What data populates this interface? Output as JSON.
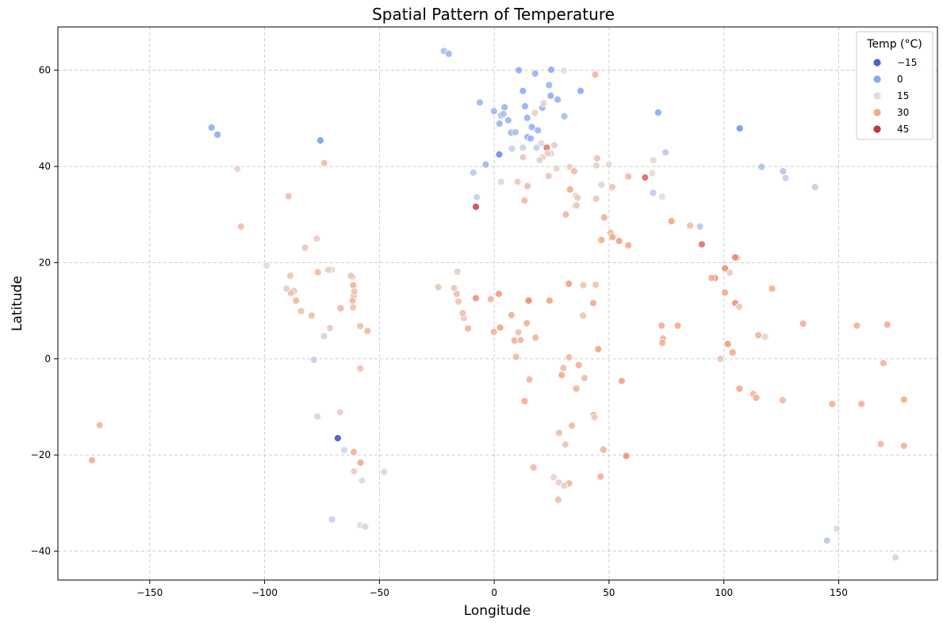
{
  "chart_data": {
    "type": "scatter",
    "title": "Spatial Pattern of Temperature",
    "xlabel": "Longitude",
    "ylabel": "Latitude",
    "xlim": [
      -190,
      193
    ],
    "ylim": [
      -46,
      69
    ],
    "xticks": [
      -150,
      -100,
      -50,
      0,
      50,
      100,
      150
    ],
    "yticks": [
      -40,
      -20,
      0,
      20,
      40,
      60
    ],
    "grid": true,
    "grid_style": "dashed",
    "legend": {
      "title": "Temp (°C)",
      "placement": "top-right",
      "entries": [
        {
          "label": "−15",
          "value": -15
        },
        {
          "label": "0",
          "value": 0
        },
        {
          "label": "15",
          "value": 15
        },
        {
          "label": "30",
          "value": 30
        },
        {
          "label": "45",
          "value": 45
        }
      ]
    },
    "colormap": "coolwarm",
    "color_range": [
      -20,
      50
    ],
    "points": [
      {
        "x": 10.7,
        "y": 60,
        "t": -1
      },
      {
        "x": 24.8,
        "y": 60.1,
        "t": -1
      },
      {
        "x": 17.8,
        "y": 59.3,
        "t": 1
      },
      {
        "x": -21.9,
        "y": 64,
        "t": 5
      },
      {
        "x": -19.8,
        "y": 63.4,
        "t": 3
      },
      {
        "x": 30.3,
        "y": 59.9,
        "t": 16
      },
      {
        "x": 44,
        "y": 59.1,
        "t": 28
      },
      {
        "x": 37.6,
        "y": 55.7,
        "t": -1
      },
      {
        "x": 12.5,
        "y": 55.7,
        "t": 0
      },
      {
        "x": -6.3,
        "y": 53.3,
        "t": 3
      },
      {
        "x": 23.9,
        "y": 56.9,
        "t": 2
      },
      {
        "x": 24.6,
        "y": 54.7,
        "t": 0
      },
      {
        "x": 27.6,
        "y": 53.9,
        "t": 1
      },
      {
        "x": 13.4,
        "y": 52.5,
        "t": 0
      },
      {
        "x": 21,
        "y": 52.2,
        "t": 2
      },
      {
        "x": 4.5,
        "y": 52.3,
        "t": 2
      },
      {
        "x": -0.1,
        "y": 51.5,
        "t": 3
      },
      {
        "x": 17.7,
        "y": 51.1,
        "t": 20
      },
      {
        "x": 2.3,
        "y": 48.9,
        "t": 2
      },
      {
        "x": 14.4,
        "y": 50.1,
        "t": 1
      },
      {
        "x": 3,
        "y": 50.6,
        "t": 3
      },
      {
        "x": 4,
        "y": 50.9,
        "t": 6
      },
      {
        "x": 30.5,
        "y": 50.4,
        "t": 5
      },
      {
        "x": 21.5,
        "y": 53.1,
        "t": 19
      },
      {
        "x": 6.1,
        "y": 49.6,
        "t": 2
      },
      {
        "x": 16.4,
        "y": 48.2,
        "t": 1
      },
      {
        "x": 19,
        "y": 47.5,
        "t": 2
      },
      {
        "x": 7.4,
        "y": 47,
        "t": 2
      },
      {
        "x": 9.2,
        "y": 47.1,
        "t": 5
      },
      {
        "x": 14.5,
        "y": 46.1,
        "t": 0
      },
      {
        "x": 15.9,
        "y": 45.8,
        "t": 2
      },
      {
        "x": -3.7,
        "y": 40.4,
        "t": 3
      },
      {
        "x": 2.2,
        "y": 42.5,
        "t": -8
      },
      {
        "x": 7.7,
        "y": 43.7,
        "t": 10
      },
      {
        "x": 12.5,
        "y": 43.9,
        "t": 11
      },
      {
        "x": 18.4,
        "y": 43.9,
        "t": 10
      },
      {
        "x": 20.5,
        "y": 44.8,
        "t": 14
      },
      {
        "x": 21.1,
        "y": 41.9,
        "t": 20
      },
      {
        "x": 22.9,
        "y": 43.9,
        "t": 38
      },
      {
        "x": 24.7,
        "y": 42.7,
        "t": 18
      },
      {
        "x": 26.1,
        "y": 44.4,
        "t": 21
      },
      {
        "x": 23.3,
        "y": 42.7,
        "t": 20
      },
      {
        "x": 19.8,
        "y": 41.3,
        "t": 20
      },
      {
        "x": 12.5,
        "y": 41.9,
        "t": 22
      },
      {
        "x": 27.1,
        "y": 39.6,
        "t": 19
      },
      {
        "x": 23.7,
        "y": 38,
        "t": 23
      },
      {
        "x": 32.9,
        "y": 39.9,
        "t": 20
      },
      {
        "x": 34.8,
        "y": 39,
        "t": 27
      },
      {
        "x": 44.5,
        "y": 40.2,
        "t": 19
      },
      {
        "x": 44.8,
        "y": 41.7,
        "t": 24
      },
      {
        "x": 49.9,
        "y": 40.4,
        "t": 17
      },
      {
        "x": 69.3,
        "y": 41.3,
        "t": 18
      },
      {
        "x": 74.6,
        "y": 42.9,
        "t": 8
      },
      {
        "x": 71.4,
        "y": 51.2,
        "t": -2
      },
      {
        "x": 106.9,
        "y": 47.9,
        "t": -6
      },
      {
        "x": 116.4,
        "y": 39.9,
        "t": 5
      },
      {
        "x": 126.9,
        "y": 37.6,
        "t": 10
      },
      {
        "x": 125.8,
        "y": 39,
        "t": 7
      },
      {
        "x": 139.7,
        "y": 35.7,
        "t": 10
      },
      {
        "x": 69.2,
        "y": 34.5,
        "t": 9
      },
      {
        "x": 73.1,
        "y": 33.7,
        "t": 16
      },
      {
        "x": 51.4,
        "y": 35.7,
        "t": 24
      },
      {
        "x": 58.4,
        "y": 37.9,
        "t": 27
      },
      {
        "x": 65.7,
        "y": 37.7,
        "t": 40
      },
      {
        "x": 68.8,
        "y": 38.6,
        "t": 16
      },
      {
        "x": 46.7,
        "y": 36.2,
        "t": 13
      },
      {
        "x": 44.4,
        "y": 33.3,
        "t": 23
      },
      {
        "x": 35.5,
        "y": 33.9,
        "t": 19
      },
      {
        "x": 36.3,
        "y": 33.5,
        "t": 20
      },
      {
        "x": 35.2,
        "y": 31.8,
        "t": 19
      },
      {
        "x": 35.9,
        "y": 31.9,
        "t": 21
      },
      {
        "x": 31.2,
        "y": 30,
        "t": 28
      },
      {
        "x": 33,
        "y": 35.2,
        "t": 32
      },
      {
        "x": 10.2,
        "y": 36.8,
        "t": 22
      },
      {
        "x": 3,
        "y": 36.8,
        "t": 17
      },
      {
        "x": 13.2,
        "y": 32.9,
        "t": 27
      },
      {
        "x": -7.6,
        "y": 33.6,
        "t": 10
      },
      {
        "x": -8,
        "y": 31.6,
        "t": 44
      },
      {
        "x": -9.1,
        "y": 38.7,
        "t": 8
      },
      {
        "x": 14.5,
        "y": 35.9,
        "t": 27
      },
      {
        "x": 47.9,
        "y": 29.4,
        "t": 30
      },
      {
        "x": 50.6,
        "y": 26.2,
        "t": 26
      },
      {
        "x": 51.5,
        "y": 25.3,
        "t": 32
      },
      {
        "x": 54.4,
        "y": 24.5,
        "t": 33
      },
      {
        "x": 58.4,
        "y": 23.6,
        "t": 32
      },
      {
        "x": 46.7,
        "y": 24.7,
        "t": 32
      },
      {
        "x": 77.2,
        "y": 28.6,
        "t": 33
      },
      {
        "x": 85.3,
        "y": 27.7,
        "t": 26
      },
      {
        "x": 89.6,
        "y": 27.5,
        "t": 8
      },
      {
        "x": 90.4,
        "y": 23.8,
        "t": 39
      },
      {
        "x": 96.1,
        "y": 16.8,
        "t": 35
      },
      {
        "x": 94.6,
        "y": 16.8,
        "t": 30
      },
      {
        "x": 100.5,
        "y": 18.8,
        "t": 35
      },
      {
        "x": 102.6,
        "y": 17.9,
        "t": 21
      },
      {
        "x": 105.8,
        "y": 21,
        "t": 26
      },
      {
        "x": 104.9,
        "y": 21.1,
        "t": 36
      },
      {
        "x": 100.5,
        "y": 13.8,
        "t": 32
      },
      {
        "x": 104.9,
        "y": 11.6,
        "t": 35
      },
      {
        "x": 106.7,
        "y": 10.8,
        "t": 22
      },
      {
        "x": 101.7,
        "y": 3.1,
        "t": 34
      },
      {
        "x": 103.8,
        "y": 1.3,
        "t": 32
      },
      {
        "x": 121,
        "y": 14.6,
        "t": 31
      },
      {
        "x": 115,
        "y": 4.9,
        "t": 29
      },
      {
        "x": 118,
        "y": 4.6,
        "t": 18
      },
      {
        "x": 134.5,
        "y": 7.3,
        "t": 30
      },
      {
        "x": 157.9,
        "y": 6.9,
        "t": 29
      },
      {
        "x": 171.2,
        "y": 7.1,
        "t": 31
      },
      {
        "x": 79.9,
        "y": 6.9,
        "t": 32
      },
      {
        "x": 73.5,
        "y": 4.2,
        "t": 28
      },
      {
        "x": 73.2,
        "y": 3.3,
        "t": 30
      },
      {
        "x": 72.9,
        "y": 6.9,
        "t": 30
      },
      {
        "x": 98.5,
        "y": 0,
        "t": 23
      },
      {
        "x": 106.8,
        "y": -6.2,
        "t": 32
      },
      {
        "x": 112.8,
        "y": -7.3,
        "t": 28
      },
      {
        "x": 114.1,
        "y": -8.1,
        "t": 30
      },
      {
        "x": 125.6,
        "y": -8.6,
        "t": 28
      },
      {
        "x": 147.2,
        "y": -9.4,
        "t": 30
      },
      {
        "x": 159.9,
        "y": -9.4,
        "t": 29
      },
      {
        "x": 169.5,
        "y": -0.9,
        "t": 29
      },
      {
        "x": 178.4,
        "y": -8.5,
        "t": 31
      },
      {
        "x": 168.3,
        "y": -17.7,
        "t": 28
      },
      {
        "x": 178.4,
        "y": -18.1,
        "t": 29
      },
      {
        "x": 149.1,
        "y": -35.3,
        "t": 17
      },
      {
        "x": 144.9,
        "y": -37.8,
        "t": 8
      },
      {
        "x": 174.8,
        "y": -41.3,
        "t": 12
      },
      {
        "x": 55.5,
        "y": -4.6,
        "t": 33
      },
      {
        "x": 57.5,
        "y": -20.2,
        "t": 35
      },
      {
        "x": 47.5,
        "y": -18.9,
        "t": 30
      },
      {
        "x": 46.3,
        "y": -24.5,
        "t": 31
      },
      {
        "x": 43.3,
        "y": -11.7,
        "t": 32
      },
      {
        "x": 43.7,
        "y": -12.2,
        "t": 20
      },
      {
        "x": 39.3,
        "y": -4,
        "t": 26
      },
      {
        "x": 36.8,
        "y": -1.3,
        "t": 31
      },
      {
        "x": 35.7,
        "y": -6.2,
        "t": 28
      },
      {
        "x": 32.6,
        "y": 0.3,
        "t": 27
      },
      {
        "x": 30.1,
        "y": -1.9,
        "t": 26
      },
      {
        "x": 29.4,
        "y": -3.4,
        "t": 32
      },
      {
        "x": 33.8,
        "y": -13.9,
        "t": 28
      },
      {
        "x": 28.3,
        "y": -15.4,
        "t": 26
      },
      {
        "x": 31,
        "y": -17.8,
        "t": 23
      },
      {
        "x": 28.2,
        "y": -25.7,
        "t": 21
      },
      {
        "x": 25.9,
        "y": -24.6,
        "t": 19
      },
      {
        "x": 31.1,
        "y": -26.3,
        "t": 20
      },
      {
        "x": 32.6,
        "y": -25.9,
        "t": 28
      },
      {
        "x": 30.4,
        "y": -26.4,
        "t": 19
      },
      {
        "x": 27.9,
        "y": -29.3,
        "t": 26
      },
      {
        "x": 17.1,
        "y": -22.6,
        "t": 27
      },
      {
        "x": 13.2,
        "y": -8.8,
        "t": 31
      },
      {
        "x": 15.3,
        "y": -4.3,
        "t": 28
      },
      {
        "x": 9.5,
        "y": 0.4,
        "t": 27
      },
      {
        "x": 8.8,
        "y": 3.8,
        "t": 30
      },
      {
        "x": 11.5,
        "y": 3.9,
        "t": 28
      },
      {
        "x": 10.5,
        "y": 5.5,
        "t": 23
      },
      {
        "x": 2.6,
        "y": 6.5,
        "t": 33
      },
      {
        "x": -0.2,
        "y": 5.6,
        "t": 29
      },
      {
        "x": 7.5,
        "y": 9.1,
        "t": 30
      },
      {
        "x": 14.2,
        "y": 7.4,
        "t": 30
      },
      {
        "x": 15,
        "y": 12.1,
        "t": 36
      },
      {
        "x": 18,
        "y": 4.4,
        "t": 29
      },
      {
        "x": 24.1,
        "y": 12.1,
        "t": 33
      },
      {
        "x": 32.5,
        "y": 15.6,
        "t": 34
      },
      {
        "x": 38.8,
        "y": 15.3,
        "t": 23
      },
      {
        "x": 44.2,
        "y": 15.4,
        "t": 24
      },
      {
        "x": 43.1,
        "y": 11.6,
        "t": 32
      },
      {
        "x": 45.3,
        "y": 2,
        "t": 33
      },
      {
        "x": 38.7,
        "y": 9,
        "t": 24
      },
      {
        "x": 2,
        "y": 13.5,
        "t": 34
      },
      {
        "x": -1.5,
        "y": 12.4,
        "t": 29
      },
      {
        "x": -8,
        "y": 12.6,
        "t": 35
      },
      {
        "x": -11.4,
        "y": 6.3,
        "t": 30
      },
      {
        "x": -13.2,
        "y": 8.5,
        "t": 22
      },
      {
        "x": -13.7,
        "y": 9.5,
        "t": 25
      },
      {
        "x": -15.6,
        "y": 11.9,
        "t": 24
      },
      {
        "x": -16.3,
        "y": 13.5,
        "t": 26
      },
      {
        "x": -17.5,
        "y": 14.7,
        "t": 22
      },
      {
        "x": -16,
        "y": 18.1,
        "t": 20
      },
      {
        "x": -24.4,
        "y": 14.9,
        "t": 23
      },
      {
        "x": -58.4,
        "y": 6.8,
        "t": 25
      },
      {
        "x": -55.2,
        "y": 5.8,
        "t": 27
      },
      {
        "x": -61.5,
        "y": 10.7,
        "t": 24
      },
      {
        "x": -61.2,
        "y": 13.1,
        "t": 25
      },
      {
        "x": -61.7,
        "y": 12.1,
        "t": 27
      },
      {
        "x": -61.4,
        "y": 15.3,
        "t": 28
      },
      {
        "x": -61.8,
        "y": 17.1,
        "t": 26
      },
      {
        "x": -62.5,
        "y": 17.3,
        "t": 20
      },
      {
        "x": -60.9,
        "y": 14,
        "t": 24
      },
      {
        "x": -66.9,
        "y": 10.5,
        "t": 28
      },
      {
        "x": -70.7,
        "y": 18.5,
        "t": 19
      },
      {
        "x": -72.3,
        "y": 18.5,
        "t": 20
      },
      {
        "x": -76.8,
        "y": 18,
        "t": 27
      },
      {
        "x": -77.3,
        "y": 25,
        "t": 21
      },
      {
        "x": -82.4,
        "y": 23.1,
        "t": 22
      },
      {
        "x": -84.1,
        "y": 9.9,
        "t": 24
      },
      {
        "x": -86.3,
        "y": 12.1,
        "t": 28
      },
      {
        "x": -87.2,
        "y": 14.1,
        "t": 24
      },
      {
        "x": -88.6,
        "y": 13.7,
        "t": 25
      },
      {
        "x": -90.5,
        "y": 14.6,
        "t": 21
      },
      {
        "x": -88.8,
        "y": 17.3,
        "t": 23
      },
      {
        "x": -79.5,
        "y": 9,
        "t": 25
      },
      {
        "x": -74.1,
        "y": 4.7,
        "t": 12
      },
      {
        "x": -78.5,
        "y": -0.2,
        "t": 10
      },
      {
        "x": -77,
        "y": -12,
        "t": 19
      },
      {
        "x": -68.1,
        "y": -16.5,
        "t": -99
      },
      {
        "x": -67.1,
        "y": -11.1,
        "t": 20
      },
      {
        "x": -71.5,
        "y": 6.4,
        "t": 21
      },
      {
        "x": -57.6,
        "y": -25.3,
        "t": 14
      },
      {
        "x": -58.4,
        "y": -34.6,
        "t": 15
      },
      {
        "x": -56.2,
        "y": -34.9,
        "t": 12
      },
      {
        "x": -70.6,
        "y": -33.4,
        "t": 10
      },
      {
        "x": -65.3,
        "y": -19,
        "t": 12
      },
      {
        "x": -61.2,
        "y": -19.4,
        "t": 30
      },
      {
        "x": -61,
        "y": -23.4,
        "t": 20
      },
      {
        "x": -58.2,
        "y": -21.6,
        "t": 32
      },
      {
        "x": -58.3,
        "y": -2,
        "t": 25
      },
      {
        "x": -47.9,
        "y": -23.5,
        "t": 18
      },
      {
        "x": -99.1,
        "y": 19.4,
        "t": 14
      },
      {
        "x": -89.6,
        "y": 33.8,
        "t": 25
      },
      {
        "x": -74,
        "y": 40.7,
        "t": 27
      },
      {
        "x": -111.9,
        "y": 39.5,
        "t": 19
      },
      {
        "x": -110.3,
        "y": 27.5,
        "t": 26
      },
      {
        "x": -75.7,
        "y": 45.4,
        "t": -5
      },
      {
        "x": -123.1,
        "y": 48.1,
        "t": 0
      },
      {
        "x": -120.5,
        "y": 46.6,
        "t": -1
      },
      {
        "x": -175.2,
        "y": -21.1,
        "t": 31
      },
      {
        "x": -171.8,
        "y": -13.8,
        "t": 28
      }
    ]
  }
}
